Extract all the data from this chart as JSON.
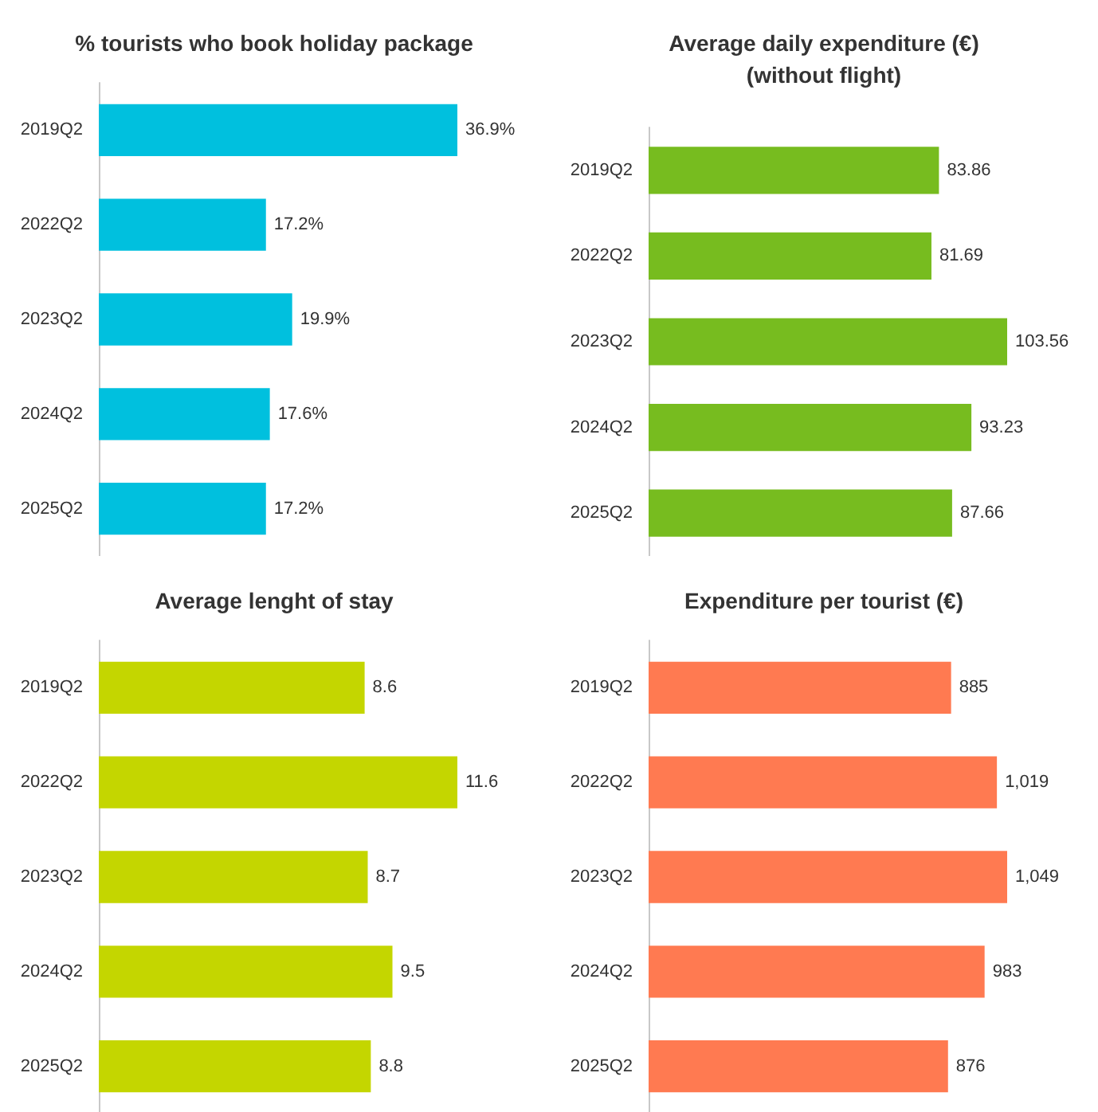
{
  "chart_data": [
    {
      "type": "bar",
      "orientation": "horizontal",
      "title": "% tourists who book holiday package",
      "categories": [
        "2019Q2",
        "2022Q2",
        "2023Q2",
        "2024Q2",
        "2025Q2"
      ],
      "values": [
        36.9,
        17.2,
        19.9,
        17.6,
        17.2
      ],
      "value_labels": [
        "36.9%",
        "17.2%",
        "19.9%",
        "17.6%",
        "17.2%"
      ],
      "color": "#00c0de",
      "tick_labels": "y"
    },
    {
      "type": "bar",
      "orientation": "horizontal",
      "title": "Average daily expenditure (€)\n(without flight)",
      "categories": [
        "2019Q2",
        "2022Q2",
        "2023Q2",
        "2024Q2",
        "2025Q2"
      ],
      "values": [
        83.86,
        81.69,
        103.56,
        93.23,
        87.66
      ],
      "value_labels": [
        "83.86",
        "81.69",
        "103.56",
        "93.23",
        "87.66"
      ],
      "color": "#77bc1f",
      "tick_labels": "y"
    },
    {
      "type": "bar",
      "orientation": "horizontal",
      "title": "Average lenght of stay",
      "categories": [
        "2019Q2",
        "2022Q2",
        "2023Q2",
        "2024Q2",
        "2025Q2"
      ],
      "values": [
        8.6,
        11.6,
        8.7,
        9.5,
        8.8
      ],
      "value_labels": [
        "8.6",
        "11.6",
        "8.7",
        "9.5",
        "8.8"
      ],
      "color": "#c4d600",
      "tick_labels": "y"
    },
    {
      "type": "bar",
      "orientation": "horizontal",
      "title": "Expenditure per tourist (€)",
      "categories": [
        "2019Q2",
        "2022Q2",
        "2023Q2",
        "2024Q2",
        "2025Q2"
      ],
      "values": [
        885,
        1019,
        1049,
        983,
        876
      ],
      "value_labels": [
        "885",
        "1,019",
        "1,049",
        "983",
        "876"
      ],
      "color": "#ff7a51",
      "tick_labels": "y"
    }
  ]
}
